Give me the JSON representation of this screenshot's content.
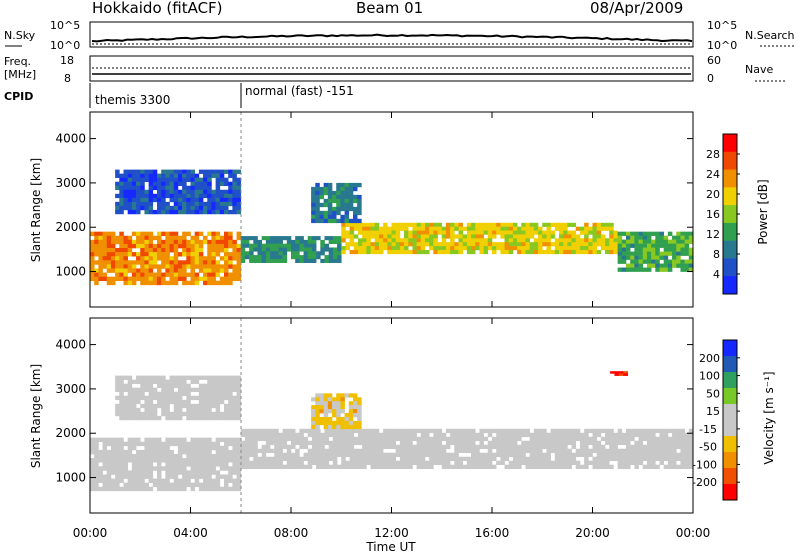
{
  "header": {
    "station": "Hokkaido (fitACF)",
    "beam": "Beam 01",
    "date": "08/Apr/2009"
  },
  "summary_panel": {
    "left_label": "N.Sky",
    "right_label": "N.Search",
    "left_ticks": [
      "10^5",
      "10^0"
    ],
    "right_ticks": [
      "10^5",
      "10^0"
    ]
  },
  "freq_panel": {
    "left_label_1": "Freq.",
    "left_label_2": "[MHz]",
    "right_label": "Nave",
    "left_ticks": [
      "18",
      "8"
    ],
    "right_ticks": [
      "60",
      "0"
    ]
  },
  "cpid_panel": {
    "label": "CPID",
    "modes": [
      {
        "name": "themis 3300",
        "start": 0.0,
        "end": 6.0
      },
      {
        "name": "normal (fast) -151",
        "start": 6.0,
        "end": 24.0
      }
    ]
  },
  "colors": {
    "power_scale": [
      "#1428ff",
      "#2050c8",
      "#287890",
      "#30a050",
      "#88c820",
      "#f0d000",
      "#f09000",
      "#f04800",
      "#ff0000"
    ],
    "velocity_scale": [
      "#1428ff",
      "#205ab4",
      "#30a060",
      "#78c828",
      "#c8c8c8",
      "#c8c8c8",
      "#f0c000",
      "#f09000",
      "#f05000",
      "#ff0000"
    ]
  },
  "chart_data": [
    {
      "type": "heatmap",
      "name": "power",
      "xlabel": "Time UT",
      "ylabel": "Slant Range [km]",
      "xlim": [
        0,
        24
      ],
      "ylim": [
        200,
        4600
      ],
      "x_ticks": [
        "00:00",
        "04:00",
        "08:00",
        "12:00",
        "16:00",
        "20:00",
        "00:00"
      ],
      "y_ticks": [
        "1000",
        "2000",
        "3000",
        "4000"
      ],
      "colorbar": {
        "label": "Power [dB]",
        "ticks": [
          "4",
          "8",
          "12",
          "16",
          "20",
          "24",
          "28"
        ],
        "range": [
          0,
          30
        ]
      },
      "bands": [
        {
          "x_start": 0.0,
          "x_end": 6.0,
          "range_low": 700,
          "range_high": 1900,
          "value": 22
        },
        {
          "x_start": 6.0,
          "x_end": 10.0,
          "range_low": 1200,
          "range_high": 1800,
          "value": 10
        },
        {
          "x_start": 10.0,
          "x_end": 21.0,
          "range_low": 1400,
          "range_high": 2100,
          "value": 18
        },
        {
          "x_start": 21.0,
          "x_end": 24.0,
          "range_low": 1000,
          "range_high": 1900,
          "value": 12
        },
        {
          "x_start": 8.8,
          "x_end": 10.8,
          "range_low": 2100,
          "range_high": 3000,
          "value": 8
        },
        {
          "x_start": 1.0,
          "x_end": 6.0,
          "range_low": 2300,
          "range_high": 3300,
          "value": 5
        }
      ]
    },
    {
      "type": "heatmap",
      "name": "velocity",
      "xlabel": "Time UT",
      "ylabel": "Slant Range [km]",
      "xlim": [
        0,
        24
      ],
      "ylim": [
        200,
        4600
      ],
      "x_ticks": [
        "00:00",
        "04:00",
        "08:00",
        "12:00",
        "16:00",
        "20:00",
        "00:00"
      ],
      "y_ticks": [
        "1000",
        "2000",
        "3000",
        "4000"
      ],
      "colorbar": {
        "label": "Velocity [m s⁻¹]",
        "ticks": [
          "200",
          "100",
          "50",
          "15",
          "-15",
          "-50",
          "-100",
          "-200"
        ],
        "range": [
          -250,
          250
        ]
      },
      "bands": [
        {
          "x_start": 0.0,
          "x_end": 6.0,
          "range_low": 700,
          "range_high": 1900,
          "value": 0
        },
        {
          "x_start": 6.0,
          "x_end": 24.0,
          "range_low": 1200,
          "range_high": 2100,
          "value": 0
        },
        {
          "x_start": 8.8,
          "x_end": 10.8,
          "range_low": 2100,
          "range_high": 2900,
          "value": -60
        },
        {
          "x_start": 1.0,
          "x_end": 6.0,
          "range_low": 2300,
          "range_high": 3300,
          "value": 0
        },
        {
          "x_start": 20.7,
          "x_end": 21.4,
          "range_low": 3300,
          "range_high": 3400,
          "value": -220
        }
      ]
    }
  ]
}
